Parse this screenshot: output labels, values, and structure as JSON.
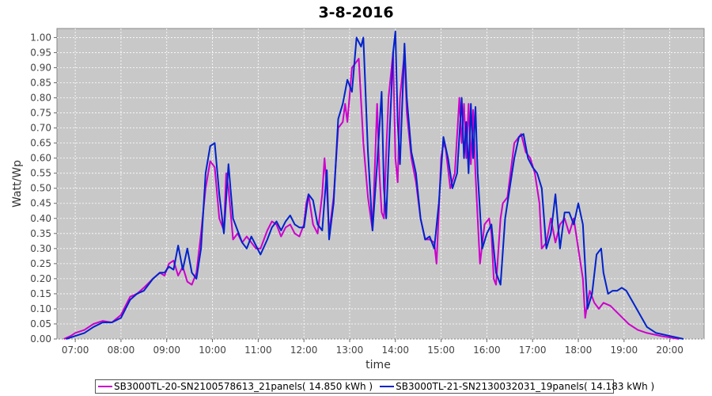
{
  "chart_data": {
    "type": "line",
    "title": "3-8-2016",
    "xlabel": "time",
    "ylabel": "Watt/Wp",
    "xlim": [
      6.6,
      20.75
    ],
    "ylim": [
      0,
      1.03
    ],
    "grid": true,
    "legend_position": "bottom",
    "x_ticks": [
      {
        "label": "07:00",
        "value": 7
      },
      {
        "label": "08:00",
        "value": 8
      },
      {
        "label": "09:00",
        "value": 9
      },
      {
        "label": "10:00",
        "value": 10
      },
      {
        "label": "11:00",
        "value": 11
      },
      {
        "label": "12:00",
        "value": 12
      },
      {
        "label": "13:00",
        "value": 13
      },
      {
        "label": "14:00",
        "value": 14
      },
      {
        "label": "15:00",
        "value": 15
      },
      {
        "label": "16:00",
        "value": 16
      },
      {
        "label": "17:00",
        "value": 17
      },
      {
        "label": "18:00",
        "value": 18
      },
      {
        "label": "19:00",
        "value": 19
      },
      {
        "label": "20:00",
        "value": 20
      }
    ],
    "y_ticks": [
      "0.00",
      "0.05",
      "0.10",
      "0.15",
      "0.20",
      "0.25",
      "0.30",
      "0.35",
      "0.40",
      "0.45",
      "0.50",
      "0.55",
      "0.60",
      "0.65",
      "0.70",
      "0.75",
      "0.80",
      "0.85",
      "0.90",
      "0.95",
      "1.00"
    ],
    "series": [
      {
        "name": "SB3000TL-20-SN2100578613_21panels( 14.850 kWh )",
        "color": "#cc00cc",
        "points": [
          [
            6.75,
            0.0
          ],
          [
            6.9,
            0.01
          ],
          [
            7.0,
            0.02
          ],
          [
            7.2,
            0.03
          ],
          [
            7.4,
            0.05
          ],
          [
            7.6,
            0.06
          ],
          [
            7.8,
            0.055
          ],
          [
            8.0,
            0.08
          ],
          [
            8.1,
            0.11
          ],
          [
            8.2,
            0.14
          ],
          [
            8.35,
            0.15
          ],
          [
            8.5,
            0.17
          ],
          [
            8.7,
            0.2
          ],
          [
            8.85,
            0.22
          ],
          [
            8.95,
            0.21
          ],
          [
            9.05,
            0.25
          ],
          [
            9.15,
            0.26
          ],
          [
            9.25,
            0.21
          ],
          [
            9.35,
            0.24
          ],
          [
            9.45,
            0.19
          ],
          [
            9.55,
            0.18
          ],
          [
            9.65,
            0.22
          ],
          [
            9.75,
            0.35
          ],
          [
            9.85,
            0.5
          ],
          [
            9.95,
            0.59
          ],
          [
            10.05,
            0.57
          ],
          [
            10.15,
            0.4
          ],
          [
            10.25,
            0.36
          ],
          [
            10.3,
            0.55
          ],
          [
            10.35,
            0.5
          ],
          [
            10.45,
            0.33
          ],
          [
            10.55,
            0.35
          ],
          [
            10.65,
            0.32
          ],
          [
            10.75,
            0.34
          ],
          [
            10.85,
            0.32
          ],
          [
            10.95,
            0.3
          ],
          [
            11.05,
            0.3
          ],
          [
            11.2,
            0.36
          ],
          [
            11.3,
            0.39
          ],
          [
            11.4,
            0.38
          ],
          [
            11.5,
            0.34
          ],
          [
            11.6,
            0.37
          ],
          [
            11.7,
            0.38
          ],
          [
            11.8,
            0.35
          ],
          [
            11.9,
            0.34
          ],
          [
            12.0,
            0.38
          ],
          [
            12.05,
            0.45
          ],
          [
            12.1,
            0.48
          ],
          [
            12.2,
            0.38
          ],
          [
            12.3,
            0.35
          ],
          [
            12.4,
            0.48
          ],
          [
            12.45,
            0.6
          ],
          [
            12.5,
            0.5
          ],
          [
            12.55,
            0.35
          ],
          [
            12.65,
            0.47
          ],
          [
            12.75,
            0.7
          ],
          [
            12.85,
            0.72
          ],
          [
            12.9,
            0.78
          ],
          [
            12.95,
            0.72
          ],
          [
            13.05,
            0.9
          ],
          [
            13.15,
            0.92
          ],
          [
            13.2,
            0.93
          ],
          [
            13.3,
            0.65
          ],
          [
            13.4,
            0.47
          ],
          [
            13.5,
            0.36
          ],
          [
            13.6,
            0.78
          ],
          [
            13.65,
            0.55
          ],
          [
            13.7,
            0.42
          ],
          [
            13.75,
            0.4
          ],
          [
            13.8,
            0.62
          ],
          [
            13.85,
            0.8
          ],
          [
            13.95,
            0.95
          ],
          [
            14.0,
            0.6
          ],
          [
            14.05,
            0.52
          ],
          [
            14.1,
            0.8
          ],
          [
            14.2,
            0.95
          ],
          [
            14.25,
            0.75
          ],
          [
            14.35,
            0.6
          ],
          [
            14.45,
            0.52
          ],
          [
            14.55,
            0.4
          ],
          [
            14.65,
            0.33
          ],
          [
            14.75,
            0.33
          ],
          [
            14.85,
            0.32
          ],
          [
            14.9,
            0.25
          ],
          [
            15.0,
            0.6
          ],
          [
            15.05,
            0.65
          ],
          [
            15.1,
            0.63
          ],
          [
            15.2,
            0.5
          ],
          [
            15.3,
            0.55
          ],
          [
            15.4,
            0.8
          ],
          [
            15.45,
            0.65
          ],
          [
            15.5,
            0.78
          ],
          [
            15.55,
            0.6
          ],
          [
            15.6,
            0.78
          ],
          [
            15.65,
            0.58
          ],
          [
            15.7,
            0.76
          ],
          [
            15.75,
            0.55
          ],
          [
            15.8,
            0.4
          ],
          [
            15.85,
            0.25
          ],
          [
            15.95,
            0.38
          ],
          [
            16.05,
            0.4
          ],
          [
            16.1,
            0.35
          ],
          [
            16.15,
            0.2
          ],
          [
            16.2,
            0.18
          ],
          [
            16.3,
            0.4
          ],
          [
            16.35,
            0.45
          ],
          [
            16.45,
            0.47
          ],
          [
            16.6,
            0.65
          ],
          [
            16.75,
            0.68
          ],
          [
            16.85,
            0.62
          ],
          [
            16.95,
            0.6
          ],
          [
            17.05,
            0.55
          ],
          [
            17.15,
            0.45
          ],
          [
            17.2,
            0.3
          ],
          [
            17.3,
            0.32
          ],
          [
            17.4,
            0.4
          ],
          [
            17.5,
            0.32
          ],
          [
            17.6,
            0.38
          ],
          [
            17.7,
            0.4
          ],
          [
            17.8,
            0.35
          ],
          [
            17.9,
            0.4
          ],
          [
            18.0,
            0.3
          ],
          [
            18.1,
            0.2
          ],
          [
            18.15,
            0.07
          ],
          [
            18.2,
            0.12
          ],
          [
            18.25,
            0.16
          ],
          [
            18.35,
            0.12
          ],
          [
            18.45,
            0.1
          ],
          [
            18.55,
            0.12
          ],
          [
            18.7,
            0.11
          ],
          [
            18.9,
            0.08
          ],
          [
            19.1,
            0.05
          ],
          [
            19.3,
            0.03
          ],
          [
            19.5,
            0.02
          ],
          [
            19.8,
            0.01
          ],
          [
            20.2,
            0.0
          ]
        ]
      },
      {
        "name": "SB3000TL-21-SN2130032031_19panels( 14.183 kWh )",
        "color": "#0022cc",
        "points": [
          [
            6.8,
            0.0
          ],
          [
            7.0,
            0.01
          ],
          [
            7.2,
            0.02
          ],
          [
            7.4,
            0.04
          ],
          [
            7.6,
            0.055
          ],
          [
            7.8,
            0.055
          ],
          [
            8.0,
            0.07
          ],
          [
            8.1,
            0.1
          ],
          [
            8.2,
            0.13
          ],
          [
            8.35,
            0.15
          ],
          [
            8.5,
            0.16
          ],
          [
            8.7,
            0.2
          ],
          [
            8.85,
            0.22
          ],
          [
            8.95,
            0.22
          ],
          [
            9.05,
            0.24
          ],
          [
            9.15,
            0.23
          ],
          [
            9.25,
            0.31
          ],
          [
            9.35,
            0.23
          ],
          [
            9.45,
            0.3
          ],
          [
            9.55,
            0.22
          ],
          [
            9.65,
            0.2
          ],
          [
            9.75,
            0.3
          ],
          [
            9.85,
            0.55
          ],
          [
            9.95,
            0.64
          ],
          [
            10.05,
            0.65
          ],
          [
            10.15,
            0.48
          ],
          [
            10.25,
            0.35
          ],
          [
            10.35,
            0.58
          ],
          [
            10.45,
            0.4
          ],
          [
            10.55,
            0.36
          ],
          [
            10.65,
            0.32
          ],
          [
            10.75,
            0.3
          ],
          [
            10.85,
            0.34
          ],
          [
            10.95,
            0.31
          ],
          [
            11.05,
            0.28
          ],
          [
            11.2,
            0.33
          ],
          [
            11.3,
            0.37
          ],
          [
            11.4,
            0.39
          ],
          [
            11.5,
            0.36
          ],
          [
            11.6,
            0.39
          ],
          [
            11.7,
            0.41
          ],
          [
            11.8,
            0.38
          ],
          [
            11.9,
            0.37
          ],
          [
            12.0,
            0.37
          ],
          [
            12.1,
            0.48
          ],
          [
            12.2,
            0.46
          ],
          [
            12.3,
            0.38
          ],
          [
            12.4,
            0.36
          ],
          [
            12.5,
            0.56
          ],
          [
            12.55,
            0.33
          ],
          [
            12.65,
            0.45
          ],
          [
            12.75,
            0.73
          ],
          [
            12.85,
            0.78
          ],
          [
            12.95,
            0.86
          ],
          [
            13.05,
            0.82
          ],
          [
            13.15,
            1.0
          ],
          [
            13.25,
            0.97
          ],
          [
            13.3,
            1.0
          ],
          [
            13.4,
            0.62
          ],
          [
            13.5,
            0.36
          ],
          [
            13.6,
            0.58
          ],
          [
            13.7,
            0.82
          ],
          [
            13.75,
            0.5
          ],
          [
            13.8,
            0.4
          ],
          [
            13.85,
            0.6
          ],
          [
            13.95,
            0.95
          ],
          [
            14.0,
            1.02
          ],
          [
            14.05,
            0.72
          ],
          [
            14.1,
            0.58
          ],
          [
            14.2,
            0.98
          ],
          [
            14.25,
            0.8
          ],
          [
            14.35,
            0.62
          ],
          [
            14.45,
            0.55
          ],
          [
            14.55,
            0.4
          ],
          [
            14.65,
            0.33
          ],
          [
            14.75,
            0.34
          ],
          [
            14.85,
            0.3
          ],
          [
            14.95,
            0.45
          ],
          [
            15.05,
            0.67
          ],
          [
            15.15,
            0.6
          ],
          [
            15.25,
            0.5
          ],
          [
            15.35,
            0.55
          ],
          [
            15.45,
            0.8
          ],
          [
            15.5,
            0.6
          ],
          [
            15.55,
            0.72
          ],
          [
            15.6,
            0.55
          ],
          [
            15.65,
            0.78
          ],
          [
            15.7,
            0.6
          ],
          [
            15.75,
            0.77
          ],
          [
            15.8,
            0.55
          ],
          [
            15.9,
            0.3
          ],
          [
            16.0,
            0.35
          ],
          [
            16.1,
            0.38
          ],
          [
            16.15,
            0.3
          ],
          [
            16.2,
            0.22
          ],
          [
            16.3,
            0.18
          ],
          [
            16.4,
            0.4
          ],
          [
            16.5,
            0.5
          ],
          [
            16.6,
            0.6
          ],
          [
            16.7,
            0.67
          ],
          [
            16.8,
            0.68
          ],
          [
            16.9,
            0.6
          ],
          [
            17.0,
            0.57
          ],
          [
            17.1,
            0.55
          ],
          [
            17.2,
            0.5
          ],
          [
            17.3,
            0.3
          ],
          [
            17.4,
            0.35
          ],
          [
            17.5,
            0.48
          ],
          [
            17.6,
            0.3
          ],
          [
            17.7,
            0.42
          ],
          [
            17.8,
            0.42
          ],
          [
            17.9,
            0.38
          ],
          [
            18.0,
            0.45
          ],
          [
            18.1,
            0.38
          ],
          [
            18.2,
            0.1
          ],
          [
            18.3,
            0.15
          ],
          [
            18.4,
            0.28
          ],
          [
            18.5,
            0.3
          ],
          [
            18.55,
            0.22
          ],
          [
            18.65,
            0.15
          ],
          [
            18.75,
            0.16
          ],
          [
            18.85,
            0.16
          ],
          [
            18.95,
            0.17
          ],
          [
            19.05,
            0.16
          ],
          [
            19.2,
            0.12
          ],
          [
            19.35,
            0.08
          ],
          [
            19.5,
            0.04
          ],
          [
            19.7,
            0.02
          ],
          [
            20.0,
            0.01
          ],
          [
            20.3,
            0.0
          ]
        ]
      }
    ]
  }
}
